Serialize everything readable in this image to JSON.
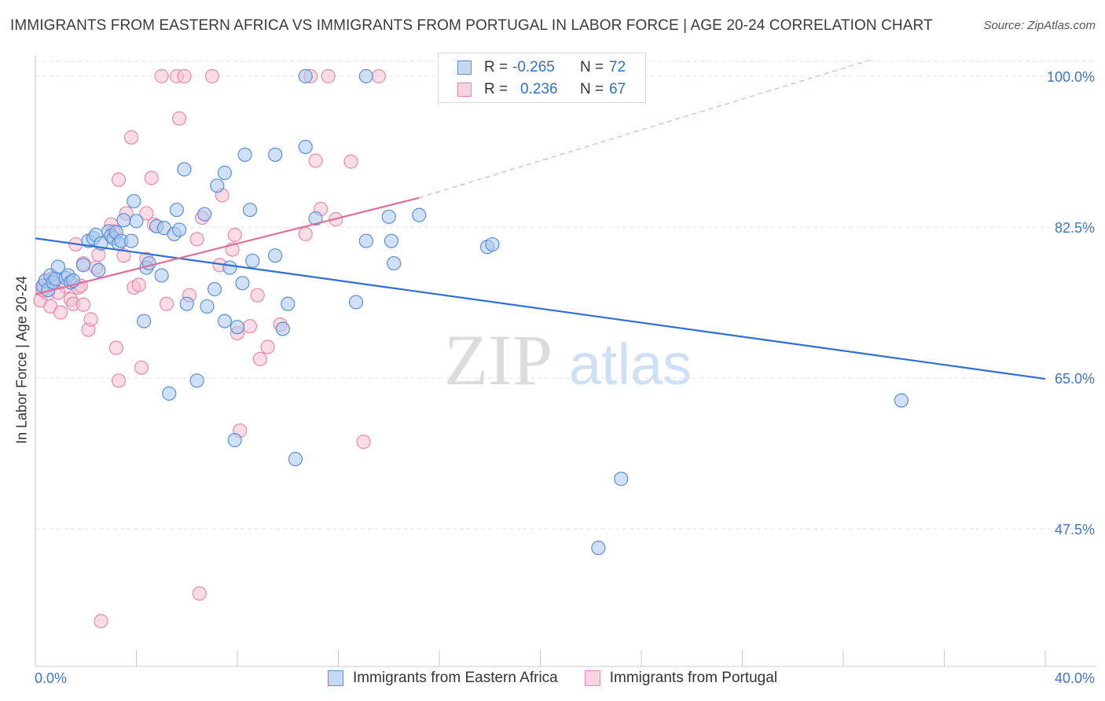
{
  "header": {
    "title": "IMMIGRANTS FROM EASTERN AFRICA VS IMMIGRANTS FROM PORTUGAL IN LABOR FORCE | AGE 20-24 CORRELATION CHART",
    "source": "Source: ZipAtlas.com"
  },
  "legend": {
    "r_label": "R =",
    "n_label": "N =",
    "rows": [
      {
        "r": "-0.265",
        "n": "72"
      },
      {
        "r": "0.236",
        "n": "67"
      }
    ]
  },
  "watermark": {
    "zip": "ZIP",
    "atlas": "atlas"
  },
  "colors": {
    "blue_fill": "#a9c8f0",
    "blue_stroke": "#5b8fd6",
    "blue_line": "#2f6fcf",
    "pink_fill": "#f6bfd2",
    "pink_stroke": "#e889ab",
    "pink_line": "#e0709a",
    "tick_label": "#3c75cc",
    "grid": "#e3e3e3"
  },
  "chart_data": {
    "type": "scatter",
    "title": "IMMIGRANTS FROM EASTERN AFRICA VS IMMIGRANTS FROM PORTUGAL IN LABOR FORCE | AGE 20-24 CORRELATION CHART",
    "xlabel": "",
    "ylabel": "In Labor Force | Age 20-24",
    "xlim": [
      0,
      40
    ],
    "ylim": [
      30,
      102
    ],
    "x_tick_labels": [
      {
        "value": 0,
        "label": "0.0%"
      },
      {
        "value": 40,
        "label": "40.0%"
      }
    ],
    "y_tick_labels": [
      {
        "value": 100,
        "label": "100.0%"
      },
      {
        "value": 82.5,
        "label": "82.5%"
      },
      {
        "value": 65,
        "label": "65.0%"
      },
      {
        "value": 47.5,
        "label": "47.5%"
      }
    ],
    "grid": true,
    "legend_position": "top-center",
    "series": [
      {
        "name": "Immigrants from Eastern Africa",
        "color": "#a9c8f0",
        "points": [
          [
            0.3,
            75.7
          ],
          [
            0.4,
            76.3
          ],
          [
            0.5,
            75.2
          ],
          [
            0.6,
            76.9
          ],
          [
            0.7,
            76.1
          ],
          [
            0.8,
            76.5
          ],
          [
            0.9,
            77.9
          ],
          [
            1.2,
            76.6
          ],
          [
            1.3,
            76.9
          ],
          [
            1.4,
            76.1
          ],
          [
            1.5,
            76.3
          ],
          [
            1.9,
            78.1
          ],
          [
            2.1,
            80.9
          ],
          [
            2.3,
            81.2
          ],
          [
            2.4,
            81.6
          ],
          [
            2.5,
            77.5
          ],
          [
            2.6,
            80.6
          ],
          [
            2.9,
            82.0
          ],
          [
            3.0,
            81.5
          ],
          [
            3.1,
            81.2
          ],
          [
            3.2,
            81.9
          ],
          [
            3.3,
            80.6
          ],
          [
            3.4,
            80.9
          ],
          [
            3.8,
            80.9
          ],
          [
            3.9,
            85.5
          ],
          [
            4.0,
            83.2
          ],
          [
            3.5,
            83.3
          ],
          [
            4.3,
            71.6
          ],
          [
            4.4,
            77.8
          ],
          [
            4.5,
            78.3
          ],
          [
            4.8,
            82.6
          ],
          [
            5.0,
            76.9
          ],
          [
            5.1,
            82.4
          ],
          [
            5.3,
            63.2
          ],
          [
            5.5,
            81.7
          ],
          [
            5.6,
            84.5
          ],
          [
            5.7,
            82.2
          ],
          [
            5.9,
            89.2
          ],
          [
            6.0,
            73.6
          ],
          [
            6.4,
            64.7
          ],
          [
            6.7,
            84.0
          ],
          [
            6.8,
            73.3
          ],
          [
            7.1,
            75.3
          ],
          [
            7.2,
            87.3
          ],
          [
            7.5,
            71.6
          ],
          [
            7.5,
            88.8
          ],
          [
            7.7,
            77.8
          ],
          [
            7.9,
            57.8
          ],
          [
            8.0,
            70.9
          ],
          [
            8.2,
            76.0
          ],
          [
            8.3,
            90.9
          ],
          [
            8.5,
            84.5
          ],
          [
            8.6,
            78.6
          ],
          [
            9.5,
            79.2
          ],
          [
            9.5,
            90.9
          ],
          [
            9.8,
            70.7
          ],
          [
            10.0,
            73.6
          ],
          [
            10.3,
            55.6
          ],
          [
            10.7,
            91.8
          ],
          [
            11.1,
            83.5
          ],
          [
            10.7,
            100.0
          ],
          [
            12.7,
            73.8
          ],
          [
            13.1,
            80.9
          ],
          [
            13.1,
            100.0
          ],
          [
            14.0,
            83.7
          ],
          [
            14.1,
            80.9
          ],
          [
            14.2,
            78.3
          ],
          [
            15.2,
            83.9
          ],
          [
            17.9,
            80.2
          ],
          [
            18.1,
            80.5
          ],
          [
            23.2,
            53.3
          ],
          [
            22.3,
            45.3
          ],
          [
            34.3,
            62.4
          ]
        ]
      },
      {
        "name": "Immigrants from Portugal",
        "color": "#f6bfd2",
        "points": [
          [
            0.2,
            74.0
          ],
          [
            0.3,
            75.5
          ],
          [
            0.4,
            76.3
          ],
          [
            0.5,
            74.8
          ],
          [
            0.6,
            73.3
          ],
          [
            0.7,
            76.6
          ],
          [
            1.0,
            72.6
          ],
          [
            1.2,
            75.6
          ],
          [
            1.4,
            74.1
          ],
          [
            1.5,
            73.6
          ],
          [
            1.6,
            80.5
          ],
          [
            1.7,
            75.5
          ],
          [
            1.8,
            75.7
          ],
          [
            1.9,
            73.5
          ],
          [
            2.1,
            70.6
          ],
          [
            2.2,
            71.8
          ],
          [
            2.4,
            77.8
          ],
          [
            2.5,
            79.3
          ],
          [
            3.0,
            82.8
          ],
          [
            3.1,
            82.0
          ],
          [
            3.2,
            68.5
          ],
          [
            3.3,
            88.0
          ],
          [
            3.5,
            79.2
          ],
          [
            3.6,
            84.1
          ],
          [
            3.8,
            92.9
          ],
          [
            3.9,
            75.5
          ],
          [
            4.1,
            75.8
          ],
          [
            4.2,
            66.2
          ],
          [
            4.4,
            78.8
          ],
          [
            4.6,
            88.2
          ],
          [
            4.7,
            82.8
          ],
          [
            5.0,
            100.0
          ],
          [
            5.2,
            73.6
          ],
          [
            5.6,
            100.0
          ],
          [
            5.7,
            95.1
          ],
          [
            5.9,
            100.0
          ],
          [
            6.1,
            74.6
          ],
          [
            6.4,
            81.1
          ],
          [
            6.5,
            40.0
          ],
          [
            6.6,
            83.6
          ],
          [
            7.0,
            100.0
          ],
          [
            7.3,
            78.1
          ],
          [
            7.4,
            86.2
          ],
          [
            7.8,
            79.9
          ],
          [
            7.9,
            81.6
          ],
          [
            8.0,
            70.2
          ],
          [
            8.1,
            58.9
          ],
          [
            8.5,
            71.0
          ],
          [
            8.8,
            74.6
          ],
          [
            8.9,
            67.2
          ],
          [
            9.2,
            68.6
          ],
          [
            9.7,
            71.2
          ],
          [
            10.7,
            81.7
          ],
          [
            10.9,
            100.0
          ],
          [
            11.1,
            90.2
          ],
          [
            11.3,
            84.6
          ],
          [
            11.6,
            100.0
          ],
          [
            11.9,
            83.4
          ],
          [
            12.5,
            90.1
          ],
          [
            13.0,
            57.6
          ],
          [
            13.6,
            100.0
          ],
          [
            0.3,
            75.2
          ],
          [
            1.9,
            78.3
          ],
          [
            3.3,
            64.7
          ],
          [
            2.6,
            36.8
          ],
          [
            0.9,
            74.9
          ],
          [
            4.4,
            84.1
          ]
        ]
      }
    ],
    "trend_lines": [
      {
        "series": "Immigrants from Eastern Africa",
        "x": [
          0,
          40
        ],
        "y": [
          81.2,
          64.9
        ]
      },
      {
        "series": "Immigrants from Portugal",
        "x": [
          0,
          15.2
        ],
        "y": [
          74.7,
          85.9
        ],
        "extension_x": [
          15.2,
          33.2
        ],
        "extension_y": [
          85.9,
          102.0
        ]
      }
    ]
  },
  "bottom_legend": [
    {
      "label": "Immigrants from Eastern Africa"
    },
    {
      "label": "Immigrants from Portugal"
    }
  ]
}
